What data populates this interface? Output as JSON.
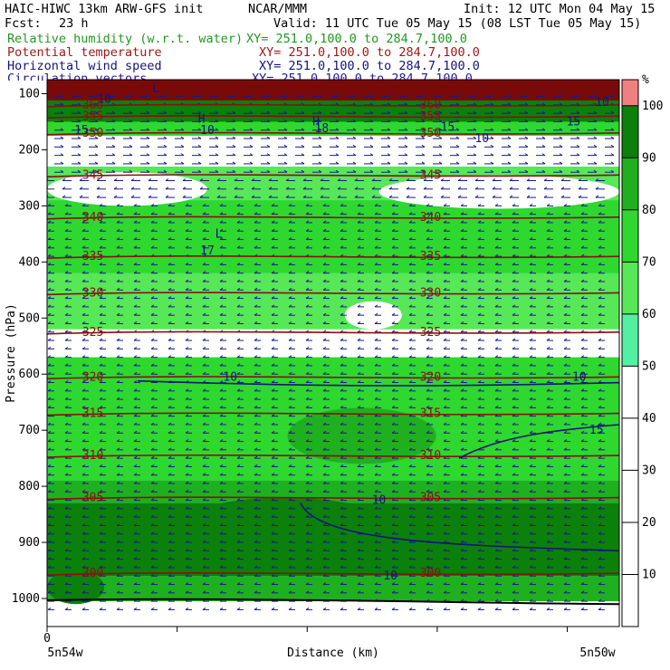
{
  "header": {
    "model": "HAIC-HIWC 13km ARW-GFS init",
    "org": "NCAR/MMM",
    "init": "Init: 12 UTC Mon 04 May 15",
    "fcst_label": "Fcst:",
    "fcst_value": "23 h",
    "valid": "Valid: 11 UTC Tue 05 May 15 (08 LST Tue 05 May 15)"
  },
  "fields": [
    {
      "label": "Relative humidity (w.r.t. water)",
      "xy": "XY= 251.0,100.0 to 284.7,100.0",
      "color": "#1e9a1e"
    },
    {
      "label": "Potential temperature",
      "xy": "XY= 251.0,100.0 to 284.7,100.0",
      "color": "#a01818"
    },
    {
      "label": "Horizontal wind speed",
      "xy": "XY= 251.0,100.0 to 284.7,100.0",
      "color": "#14147a"
    },
    {
      "label": "Circulation vectors",
      "xy": "XY= 251.0,100.0 to 284.7,100.0",
      "color": "#2020a0"
    }
  ],
  "chart_data": {
    "type": "heatmap",
    "ylabel": "Pressure (hPa)",
    "xlabel": "Distance (km)",
    "x_origin_label": "0",
    "x_left_label": "5n54w",
    "x_right_label": "5n50w",
    "y_ticks": [
      100,
      200,
      300,
      400,
      500,
      600,
      700,
      800,
      900,
      1000
    ],
    "ylim": [
      1050,
      75
    ],
    "colorbar": {
      "unit": "%",
      "ticks": [
        10,
        20,
        30,
        40,
        50,
        60,
        70,
        80,
        90,
        100
      ],
      "colors": [
        {
          "from": 50,
          "to": 60,
          "color": "#52f0a0"
        },
        {
          "from": 60,
          "to": 70,
          "color": "#56e856"
        },
        {
          "from": 70,
          "to": 80,
          "color": "#2ed82e"
        },
        {
          "from": 80,
          "to": 90,
          "color": "#1fb01f"
        },
        {
          "from": 90,
          "to": 100,
          "color": "#0b800b"
        },
        {
          "from": 100,
          "to": 105,
          "color": "#f08080"
        }
      ]
    },
    "theta_contours": [
      {
        "value": 345,
        "p": 245
      },
      {
        "value": 340,
        "p": 320
      },
      {
        "value": 335,
        "p": 390
      },
      {
        "value": 330,
        "p": 455
      },
      {
        "value": 325,
        "p": 525
      },
      {
        "value": 320,
        "p": 605
      },
      {
        "value": 315,
        "p": 670
      },
      {
        "value": 310,
        "p": 745
      },
      {
        "value": 305,
        "p": 820
      },
      {
        "value": 300,
        "p": 955
      },
      {
        "value": 350,
        "p": 170
      },
      {
        "value": 355,
        "p": 140
      },
      {
        "value": 360,
        "p": 120
      }
    ],
    "wind_labels": [
      {
        "text": "10",
        "x": 0.32,
        "p": 605
      },
      {
        "text": "10",
        "x": 0.93,
        "p": 605
      },
      {
        "text": "15",
        "x": 0.96,
        "p": 700
      },
      {
        "text": "10",
        "x": 0.58,
        "p": 825
      },
      {
        "text": "10",
        "x": 0.6,
        "p": 960
      },
      {
        "text": "10",
        "x": 0.76,
        "p": 180
      },
      {
        "text": "15",
        "x": 0.7,
        "p": 160
      },
      {
        "text": "15",
        "x": 0.92,
        "p": 150
      },
      {
        "text": "10",
        "x": 0.97,
        "p": 115
      },
      {
        "text": "10",
        "x": 0.1,
        "p": 110
      },
      {
        "text": "15",
        "x": 0.06,
        "p": 165
      },
      {
        "text": "10",
        "x": 0.28,
        "p": 165
      },
      {
        "text": "18",
        "x": 0.48,
        "p": 162
      },
      {
        "text": "17",
        "x": 0.28,
        "p": 380
      }
    ],
    "markers": [
      {
        "text": "H",
        "x": 0.27,
        "p": 145
      },
      {
        "text": "H",
        "x": 0.47,
        "p": 150
      },
      {
        "text": "L",
        "x": 0.3,
        "p": 350
      },
      {
        "text": "L",
        "x": 0.19,
        "p": 90
      }
    ]
  }
}
